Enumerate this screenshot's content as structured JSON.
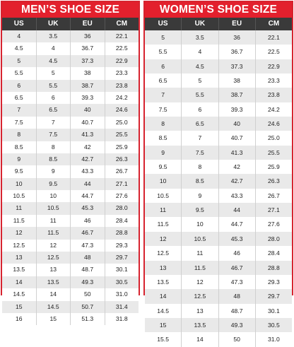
{
  "men": {
    "title": "MEN’S SHOE SIZE",
    "headers": [
      "US",
      "UK",
      "EU",
      "CM"
    ],
    "rows": [
      [
        "4",
        "3.5",
        "36",
        "22.1"
      ],
      [
        "4.5",
        "4",
        "36.7",
        "22.5"
      ],
      [
        "5",
        "4.5",
        "37.3",
        "22.9"
      ],
      [
        "5.5",
        "5",
        "38",
        "23.3"
      ],
      [
        "6",
        "5.5",
        "38.7",
        "23.8"
      ],
      [
        "6.5",
        "6",
        "39.3",
        "24.2"
      ],
      [
        "7",
        "6.5",
        "40",
        "24.6"
      ],
      [
        "7.5",
        "7",
        "40.7",
        "25.0"
      ],
      [
        "8",
        "7.5",
        "41.3",
        "25.5"
      ],
      [
        "8.5",
        "8",
        "42",
        "25.9"
      ],
      [
        "9",
        "8.5",
        "42.7",
        "26.3"
      ],
      [
        "9.5",
        "9",
        "43.3",
        "26.7"
      ],
      [
        "10",
        "9.5",
        "44",
        "27.1"
      ],
      [
        "10.5",
        "10",
        "44.7",
        "27.6"
      ],
      [
        "11",
        "10.5",
        "45.3",
        "28.0"
      ],
      [
        "11.5",
        "11",
        "46",
        "28.4"
      ],
      [
        "12",
        "11.5",
        "46.7",
        "28.8"
      ],
      [
        "12.5",
        "12",
        "47.3",
        "29.3"
      ],
      [
        "13",
        "12.5",
        "48",
        "29.7"
      ],
      [
        "13.5",
        "13",
        "48.7",
        "30.1"
      ],
      [
        "14",
        "13.5",
        "49.3",
        "30.5"
      ],
      [
        "14.5",
        "14",
        "50",
        "31.0"
      ],
      [
        "15",
        "14.5",
        "50.7",
        "31.4"
      ],
      [
        "16",
        "15",
        "51.3",
        "31.8"
      ]
    ]
  },
  "women": {
    "title": "WOMEN’S SHOE SIZE",
    "headers": [
      "US",
      "UK",
      "EU",
      "CM"
    ],
    "rows": [
      [
        "5",
        "3.5",
        "36",
        "22.1"
      ],
      [
        "5.5",
        "4",
        "36.7",
        "22.5"
      ],
      [
        "6",
        "4.5",
        "37.3",
        "22.9"
      ],
      [
        "6.5",
        "5",
        "38",
        "23.3"
      ],
      [
        "7",
        "5.5",
        "38.7",
        "23.8"
      ],
      [
        "7.5",
        "6",
        "39.3",
        "24.2"
      ],
      [
        "8",
        "6.5",
        "40",
        "24.6"
      ],
      [
        "8.5",
        "7",
        "40.7",
        "25.0"
      ],
      [
        "9",
        "7.5",
        "41.3",
        "25.5"
      ],
      [
        "9.5",
        "8",
        "42",
        "25.9"
      ],
      [
        "10",
        "8.5",
        "42.7",
        "26.3"
      ],
      [
        "10.5",
        "9",
        "43.3",
        "26.7"
      ],
      [
        "11",
        "9.5",
        "44",
        "27.1"
      ],
      [
        "11.5",
        "10",
        "44.7",
        "27.6"
      ],
      [
        "12",
        "10.5",
        "45.3",
        "28.0"
      ],
      [
        "12.5",
        "11",
        "46",
        "28.4"
      ],
      [
        "13",
        "11.5",
        "46.7",
        "28.8"
      ],
      [
        "13.5",
        "12",
        "47.3",
        "29.3"
      ],
      [
        "14",
        "12.5",
        "48",
        "29.7"
      ],
      [
        "14.5",
        "13",
        "48.7",
        "30.1"
      ],
      [
        "15",
        "13.5",
        "49.3",
        "30.5"
      ],
      [
        "15.5",
        "14",
        "50",
        "31.0"
      ]
    ]
  }
}
